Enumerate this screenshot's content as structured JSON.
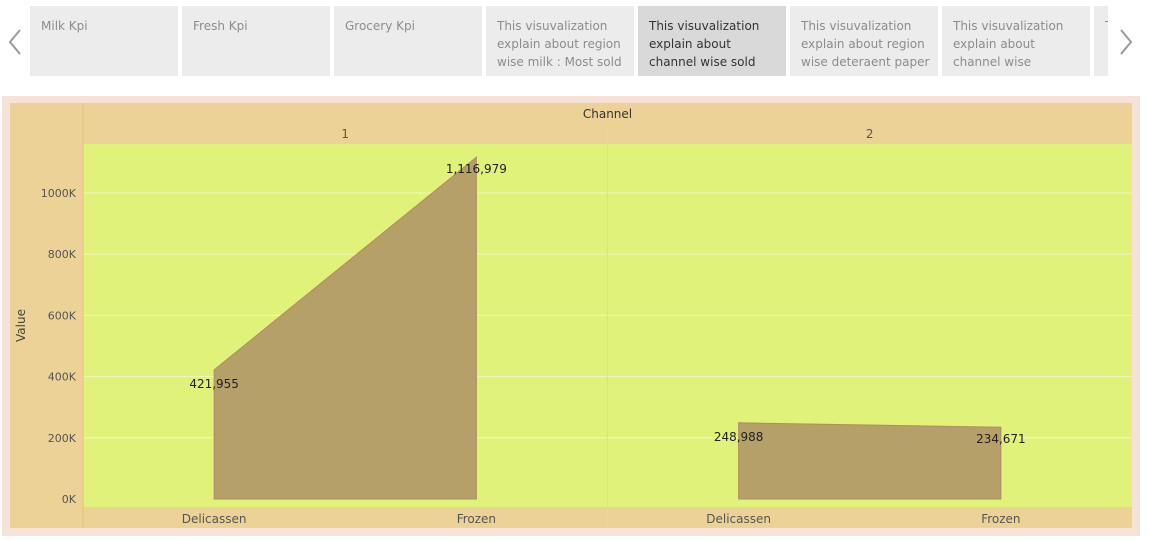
{
  "story_nav": {
    "prev_icon": "chevron-left-icon",
    "next_icon": "chevron-right-icon",
    "active_index": 4,
    "tabs": [
      {
        "label": "Milk Kpi"
      },
      {
        "label": "Fresh Kpi"
      },
      {
        "label": "Grocery Kpi"
      },
      {
        "label": "This visuvalization explain about  region wise milk : Most sold"
      },
      {
        "label": " This visuvalization explain about  channel wise sold the"
      },
      {
        "label": "This visuvalization explain about  region wise  deteraent paper"
      },
      {
        "label": "This visuvalization explain about  channel wise deteraent paper"
      },
      {
        "label": "T e v"
      }
    ]
  },
  "colors": {
    "header_bg": "#edd297",
    "plot_bg": "#e0f27a",
    "area_fill": "#b6a06a",
    "area_stroke": "#a89060",
    "outer_bg": "#f7e2d8"
  },
  "chart_data": {
    "type": "area",
    "column_header": "Channel",
    "ylabel": "Value",
    "ylim": [
      0,
      1160000
    ],
    "y_ticks": [
      0,
      200000,
      400000,
      600000,
      800000,
      1000000
    ],
    "y_tick_labels": [
      "0K",
      "200K",
      "400K",
      "600K",
      "800K",
      "1000K"
    ],
    "grid": true,
    "panels": [
      {
        "channel": "1",
        "categories": [
          "Delicassen",
          "Frozen"
        ],
        "values": [
          421955,
          1116979
        ],
        "value_labels": [
          "421,955",
          "1,116,979"
        ]
      },
      {
        "channel": "2",
        "categories": [
          "Delicassen",
          "Frozen"
        ],
        "values": [
          248988,
          234671
        ],
        "value_labels": [
          "248,988",
          "234,671"
        ]
      }
    ]
  }
}
